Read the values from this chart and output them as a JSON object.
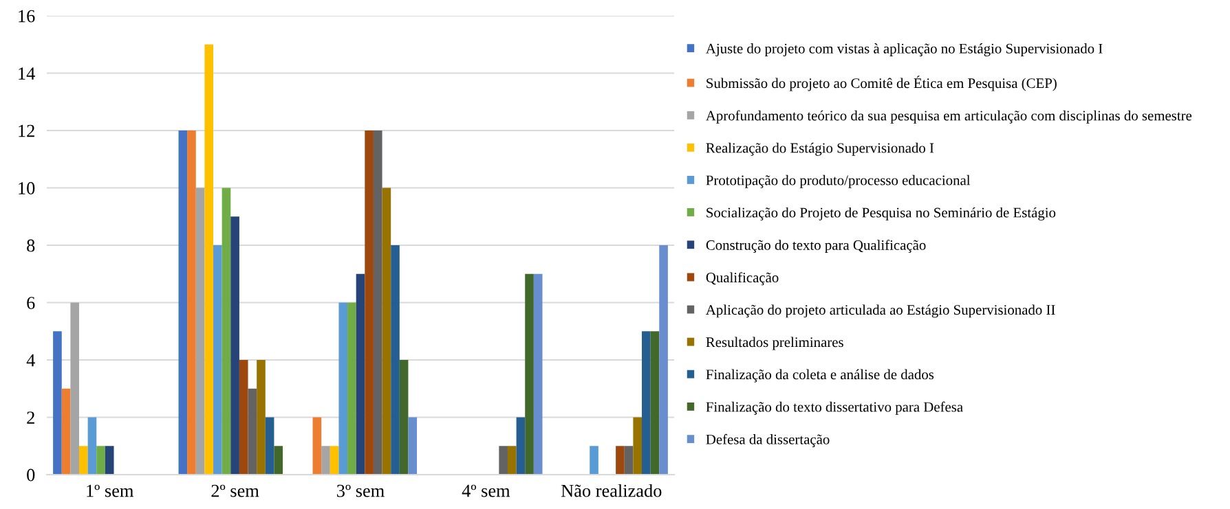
{
  "chart_data": {
    "type": "bar",
    "categories": [
      "1º sem",
      "2º sem",
      "3º sem",
      "4º sem",
      "Não realizado"
    ],
    "series": [
      {
        "name": "Ajuste do projeto com vistas à aplicação no Estágio Supervisionado I",
        "color": "#4472c4",
        "values": [
          5,
          12,
          0,
          0,
          0
        ]
      },
      {
        "name": "Submissão do projeto ao Comitê de Ética em Pesquisa (CEP)",
        "color": "#ed7d31",
        "values": [
          3,
          12,
          2,
          0,
          0
        ]
      },
      {
        "name": "Aprofundamento teórico da sua pesquisa em articulação com disciplinas do semestre",
        "color": "#a5a5a5",
        "values": [
          6,
          10,
          1,
          0,
          0
        ]
      },
      {
        "name": "Realização do Estágio Supervisionado I",
        "color": "#ffc000",
        "values": [
          1,
          15,
          1,
          0,
          0
        ]
      },
      {
        "name": "Prototipação do produto/processo educacional",
        "color": "#5b9bd5",
        "values": [
          2,
          8,
          6,
          0,
          1
        ]
      },
      {
        "name": "Socialização do Projeto de Pesquisa no Seminário de Estágio",
        "color": "#70ad47",
        "values": [
          1,
          10,
          6,
          0,
          0
        ]
      },
      {
        "name": "Construção do texto para Qualificação",
        "color": "#264478",
        "values": [
          1,
          9,
          7,
          0,
          0
        ]
      },
      {
        "name": "Qualificação",
        "color": "#9e480e",
        "values": [
          0,
          4,
          12,
          0,
          1
        ]
      },
      {
        "name": "Aplicação do projeto articulada ao Estágio Supervisionado II",
        "color": "#636363",
        "values": [
          0,
          3,
          12,
          1,
          1
        ]
      },
      {
        "name": "Resultados preliminares",
        "color": "#997300",
        "values": [
          0,
          4,
          10,
          1,
          2
        ]
      },
      {
        "name": "Finalização da coleta e análise de dados",
        "color": "#255e91",
        "values": [
          0,
          2,
          8,
          2,
          5
        ]
      },
      {
        "name": "Finalização do texto dissertativo para Defesa",
        "color": "#43682b",
        "values": [
          0,
          1,
          4,
          7,
          5
        ]
      },
      {
        "name": "Defesa da dissertação",
        "color": "#698ed0",
        "values": [
          0,
          0,
          2,
          7,
          8
        ]
      }
    ],
    "ylim": [
      0,
      16
    ],
    "yticks": [
      0,
      2,
      4,
      6,
      8,
      10,
      12,
      14,
      16
    ],
    "grid": "y",
    "legend": "right"
  }
}
